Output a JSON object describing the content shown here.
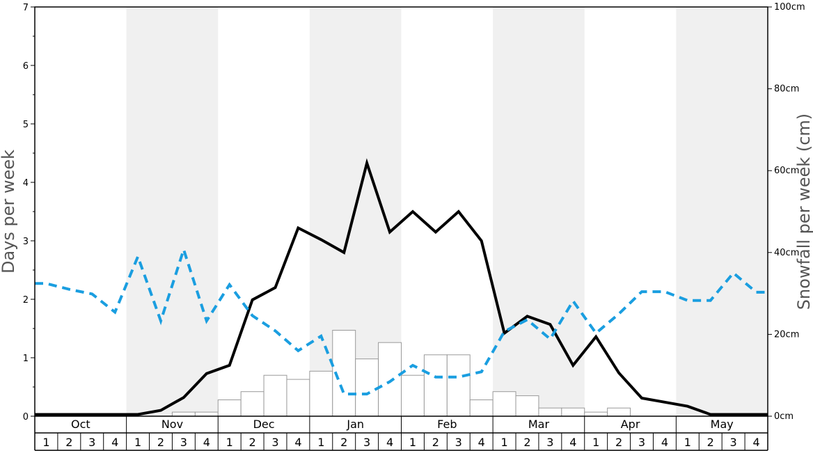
{
  "chart_data": {
    "type": "bar",
    "y_left": {
      "label": "Days per week",
      "lim": [
        0,
        7
      ],
      "ticks": [
        0,
        1,
        2,
        3,
        4,
        5,
        6,
        7
      ]
    },
    "y_right": {
      "label": "Snowfall per week (cm)",
      "lim": [
        0,
        100
      ],
      "ticks": [
        "0cm",
        "20cm",
        "40cm",
        "60cm",
        "80cm",
        "100cm"
      ]
    },
    "months": [
      "Oct",
      "Nov",
      "Dec",
      "Jan",
      "Feb",
      "Mar",
      "Apr",
      "May"
    ],
    "week_labels": [
      "1",
      "2",
      "3",
      "4"
    ],
    "grid": false,
    "series": [
      {
        "kind": "bar",
        "axis": "right",
        "color": "#ffffff",
        "stroke": "#999999",
        "values": [
          0,
          0,
          0,
          0,
          0,
          0,
          1,
          1,
          4,
          6,
          10,
          9,
          11,
          21,
          14,
          18,
          10,
          15,
          15,
          4,
          6,
          5,
          2,
          2,
          1,
          2,
          0,
          0,
          0,
          0,
          0,
          0
        ]
      },
      {
        "kind": "line",
        "axis": "left",
        "color": "#000000",
        "style": "solid",
        "values": [
          0.03,
          0.03,
          0.03,
          0.03,
          0.03,
          0.1,
          0.32,
          0.73,
          0.87,
          1.99,
          2.2,
          3.22,
          3.02,
          2.8,
          4.33,
          3.15,
          3.5,
          3.15,
          3.5,
          3.0,
          1.42,
          1.71,
          1.57,
          0.87,
          1.36,
          0.74,
          0.31,
          0.24,
          0.17,
          0.03,
          0.03,
          0.03
        ]
      },
      {
        "kind": "line",
        "axis": "left",
        "color": "#1a9ee0",
        "style": "dashed",
        "values": [
          2.27,
          2.17,
          2.09,
          1.78,
          2.73,
          1.63,
          2.85,
          1.63,
          2.25,
          1.72,
          1.46,
          1.12,
          1.37,
          0.38,
          0.38,
          0.59,
          0.87,
          0.67,
          0.67,
          0.76,
          1.45,
          1.65,
          1.32,
          1.97,
          1.42,
          1.75,
          2.13,
          2.13,
          1.98,
          1.98,
          2.45,
          2.12
        ]
      }
    ],
    "shaded_months": [
      "Nov",
      "Jan",
      "Mar",
      "May"
    ]
  }
}
